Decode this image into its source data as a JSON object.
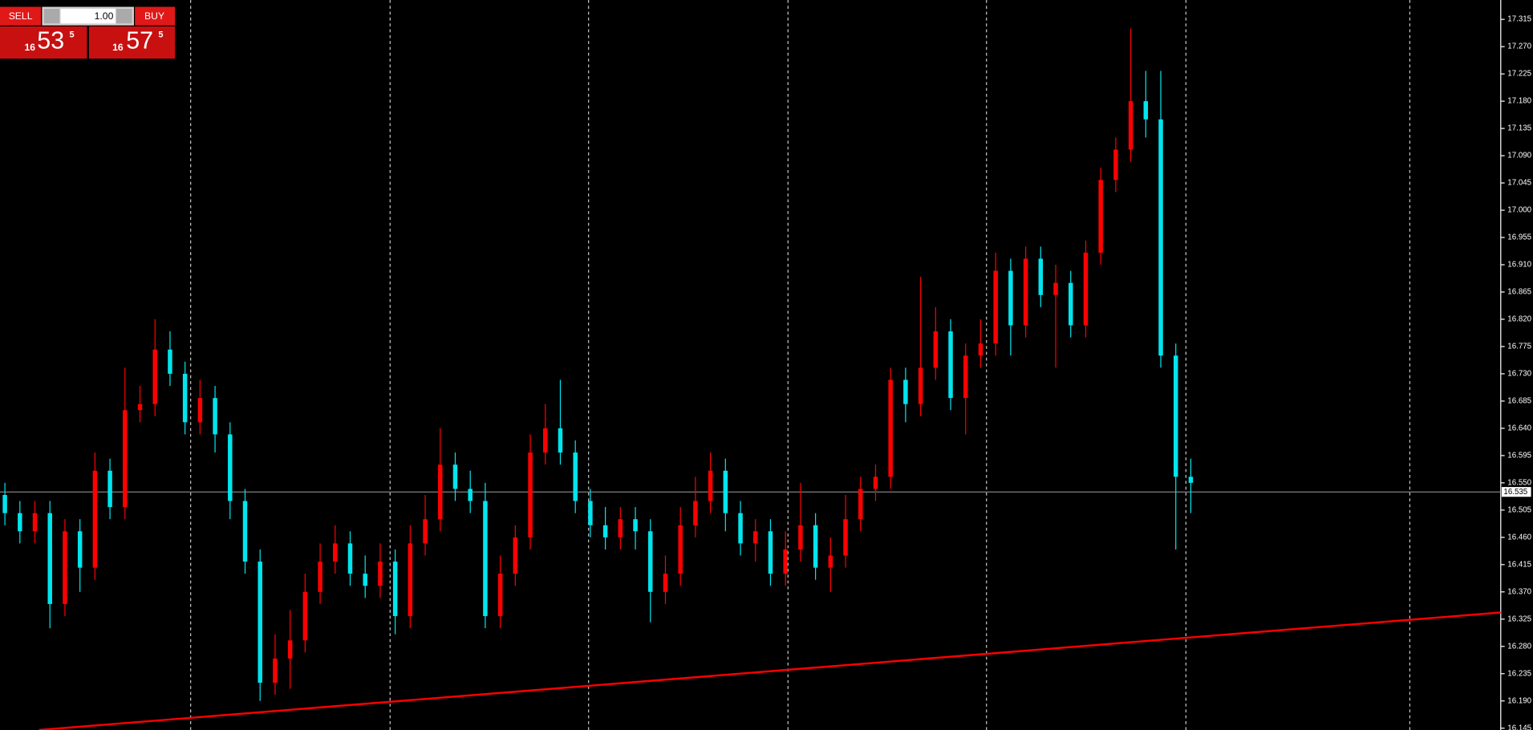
{
  "trade_panel": {
    "sell": "SELL",
    "buy": "BUY",
    "lot": "1.00",
    "sell_price": {
      "big": "16",
      "main": "53",
      "small": "5"
    },
    "buy_price": {
      "big": "16",
      "main": "57",
      "small": "5"
    }
  },
  "chart_data": {
    "type": "candlestick",
    "up_color": "#ff0000",
    "down_color": "#00e5ee",
    "grid": true,
    "ylim": [
      16.142,
      17.347
    ],
    "yticks": [
      17.315,
      {
        "value": 17.27,
        "label": "17.270"
      },
      17.225,
      {
        "value": 17.18,
        "label": "17.180"
      },
      17.135,
      {
        "value": 17.09,
        "label": "17.090"
      },
      17.045,
      {
        "value": 17,
        "label": "17.000"
      },
      16.955,
      {
        "value": 16.91,
        "label": "16.910"
      },
      16.865,
      {
        "value": 16.82,
        "label": "16.820"
      },
      16.775,
      {
        "value": 16.73,
        "label": "16.730"
      },
      16.685,
      {
        "value": 16.64,
        "label": "16.640"
      },
      16.595,
      {
        "value": 16.55,
        "label": "16.550"
      },
      16.505,
      {
        "value": 16.46,
        "label": "16.460"
      },
      16.415,
      {
        "value": 16.37,
        "label": "16.370"
      },
      16.325,
      {
        "value": 16.28,
        "label": "16.280"
      },
      16.235,
      {
        "value": 16.19,
        "label": "16.190"
      },
      16.145
    ],
    "current_price": 16.535,
    "trendline": {
      "color": "#ff0000",
      "values": [
        16.142,
        16.336
      ]
    },
    "open": [
      16.53,
      16.5,
      16.47,
      16.5,
      16.35,
      16.47,
      16.41,
      16.57,
      16.51,
      16.67,
      16.68,
      16.77,
      16.73,
      16.65,
      16.69,
      16.63,
      16.52,
      16.42,
      16.22,
      16.26,
      16.29,
      16.37,
      16.42,
      16.45,
      16.4,
      16.38,
      16.42,
      16.33,
      16.45,
      16.49,
      16.58,
      16.54,
      16.52,
      16.33,
      16.4,
      16.46,
      16.6,
      16.64,
      16.6,
      16.52,
      16.48,
      16.46,
      16.49,
      16.47,
      16.37,
      16.4,
      16.48,
      16.52,
      16.57,
      16.5,
      16.45,
      16.47,
      16.4,
      16.44,
      16.48,
      16.41,
      16.43,
      16.49,
      16.54,
      16.56,
      16.72,
      16.68,
      16.74,
      16.8,
      16.69,
      16.76,
      16.78,
      16.9,
      16.81,
      16.92,
      16.86,
      16.88,
      16.81,
      16.93,
      17.05,
      17.1,
      17.18,
      17.15,
      16.76,
      16.56
    ],
    "high": [
      16.55,
      16.52,
      16.52,
      16.52,
      16.49,
      16.49,
      16.6,
      16.59,
      16.74,
      16.71,
      16.82,
      16.8,
      16.75,
      16.72,
      16.71,
      16.65,
      16.54,
      16.44,
      16.3,
      16.34,
      16.4,
      16.45,
      16.48,
      16.47,
      16.43,
      16.45,
      16.44,
      16.48,
      16.53,
      16.64,
      16.6,
      16.57,
      16.55,
      16.43,
      16.48,
      16.63,
      16.68,
      16.72,
      16.62,
      16.54,
      16.51,
      16.51,
      16.51,
      16.49,
      16.43,
      16.51,
      16.56,
      16.6,
      16.59,
      16.52,
      16.49,
      16.49,
      16.47,
      16.55,
      16.5,
      16.46,
      16.53,
      16.56,
      16.58,
      16.74,
      16.74,
      16.89,
      16.84,
      16.82,
      16.78,
      16.82,
      16.93,
      16.92,
      16.94,
      16.94,
      16.91,
      16.9,
      16.95,
      17.07,
      17.12,
      17.3,
      17.23,
      17.23,
      16.78,
      16.59
    ],
    "low": [
      16.48,
      16.45,
      16.45,
      16.31,
      16.33,
      16.37,
      16.39,
      16.49,
      16.49,
      16.65,
      16.66,
      16.71,
      16.63,
      16.63,
      16.6,
      16.49,
      16.4,
      16.19,
      16.2,
      16.21,
      16.27,
      16.35,
      16.4,
      16.38,
      16.36,
      16.36,
      16.3,
      16.31,
      16.43,
      16.47,
      16.52,
      16.5,
      16.31,
      16.31,
      16.38,
      16.44,
      16.58,
      16.58,
      16.5,
      16.46,
      16.44,
      16.44,
      16.44,
      16.32,
      16.35,
      16.38,
      16.46,
      16.5,
      16.47,
      16.43,
      16.42,
      16.38,
      16.38,
      16.42,
      16.39,
      16.37,
      16.41,
      16.47,
      16.52,
      16.54,
      16.65,
      16.66,
      16.72,
      16.67,
      16.63,
      16.74,
      16.76,
      16.76,
      16.79,
      16.84,
      16.74,
      16.79,
      16.79,
      16.91,
      17.03,
      17.08,
      17.12,
      16.74,
      16.44,
      16.5
    ],
    "close": [
      16.5,
      16.47,
      16.5,
      16.35,
      16.47,
      16.41,
      16.57,
      16.51,
      16.67,
      16.68,
      16.77,
      16.73,
      16.65,
      16.69,
      16.63,
      16.52,
      16.42,
      16.22,
      16.26,
      16.29,
      16.37,
      16.42,
      16.45,
      16.4,
      16.38,
      16.42,
      16.33,
      16.45,
      16.49,
      16.58,
      16.54,
      16.52,
      16.33,
      16.4,
      16.46,
      16.6,
      16.64,
      16.6,
      16.52,
      16.48,
      16.46,
      16.49,
      16.47,
      16.37,
      16.4,
      16.48,
      16.52,
      16.57,
      16.5,
      16.45,
      16.47,
      16.4,
      16.44,
      16.48,
      16.41,
      16.43,
      16.49,
      16.54,
      16.56,
      16.72,
      16.68,
      16.74,
      16.8,
      16.69,
      16.76,
      16.78,
      16.9,
      16.81,
      16.92,
      16.86,
      16.88,
      16.81,
      16.93,
      17.05,
      17.1,
      17.18,
      17.15,
      16.76,
      16.56,
      16.55
    ]
  }
}
